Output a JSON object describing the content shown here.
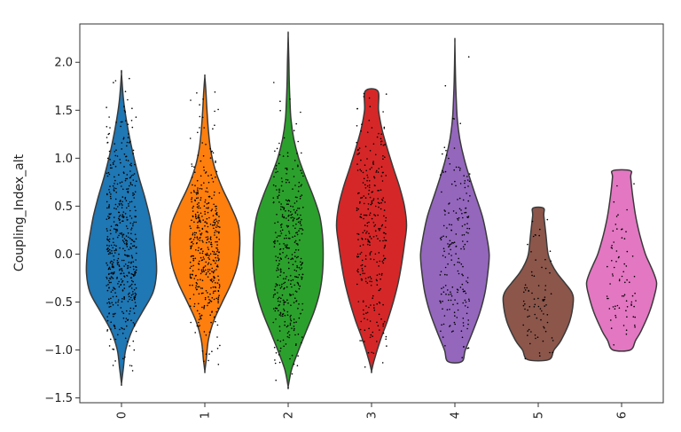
{
  "chart_data": {
    "type": "violin",
    "ylabel": "Coupling_Index_alt",
    "xlabel": "",
    "ylim": [
      -1.55,
      2.4
    ],
    "yticks": [
      -1.5,
      -1.0,
      -0.5,
      0.0,
      0.5,
      1.0,
      1.5,
      2.0
    ],
    "ytick_labels": [
      "−1.5",
      "−1.0",
      "−0.5",
      "0.0",
      "0.5",
      "1.0",
      "1.5",
      "2.0"
    ],
    "categories": [
      "0",
      "1",
      "2",
      "3",
      "4",
      "5",
      "6"
    ],
    "colors": [
      "#1f77b4",
      "#ff7f0e",
      "#2ca02c",
      "#d62728",
      "#9467bd",
      "#8c564b",
      "#e377c2"
    ],
    "grid": false,
    "violins": [
      {
        "category": "0",
        "min": -1.35,
        "max": 1.88,
        "n_points": 520,
        "profile": [
          [
            -1.35,
            0.0
          ],
          [
            -1.2,
            0.05
          ],
          [
            -1.0,
            0.12
          ],
          [
            -0.8,
            0.3
          ],
          [
            -0.6,
            0.6
          ],
          [
            -0.4,
            0.9
          ],
          [
            -0.2,
            1.0
          ],
          [
            0.0,
            0.98
          ],
          [
            0.2,
            0.9
          ],
          [
            0.4,
            0.8
          ],
          [
            0.6,
            0.66
          ],
          [
            0.8,
            0.5
          ],
          [
            1.0,
            0.36
          ],
          [
            1.2,
            0.24
          ],
          [
            1.4,
            0.14
          ],
          [
            1.6,
            0.06
          ],
          [
            1.88,
            0.0
          ]
        ]
      },
      {
        "category": "1",
        "min": -1.22,
        "max": 1.85,
        "n_points": 440,
        "profile": [
          [
            -1.22,
            0.0
          ],
          [
            -1.1,
            0.04
          ],
          [
            -0.9,
            0.1
          ],
          [
            -0.7,
            0.25
          ],
          [
            -0.5,
            0.5
          ],
          [
            -0.3,
            0.76
          ],
          [
            -0.1,
            0.94
          ],
          [
            0.1,
            1.0
          ],
          [
            0.3,
            0.96
          ],
          [
            0.5,
            0.74
          ],
          [
            0.7,
            0.48
          ],
          [
            0.9,
            0.28
          ],
          [
            1.1,
            0.16
          ],
          [
            1.3,
            0.1
          ],
          [
            1.5,
            0.06
          ],
          [
            1.7,
            0.03
          ],
          [
            1.85,
            0.0
          ]
        ]
      },
      {
        "category": "2",
        "min": -1.38,
        "max": 2.28,
        "n_points": 380,
        "profile": [
          [
            -1.38,
            0.0
          ],
          [
            -1.2,
            0.1
          ],
          [
            -1.0,
            0.3
          ],
          [
            -0.8,
            0.52
          ],
          [
            -0.6,
            0.74
          ],
          [
            -0.4,
            0.9
          ],
          [
            -0.2,
            0.98
          ],
          [
            0.0,
            1.0
          ],
          [
            0.2,
            0.98
          ],
          [
            0.4,
            0.9
          ],
          [
            0.6,
            0.72
          ],
          [
            0.8,
            0.5
          ],
          [
            1.0,
            0.3
          ],
          [
            1.2,
            0.16
          ],
          [
            1.4,
            0.08
          ],
          [
            1.6,
            0.05
          ],
          [
            1.8,
            0.03
          ],
          [
            2.0,
            0.02
          ],
          [
            2.28,
            0.0
          ]
        ]
      },
      {
        "category": "3",
        "min": -1.22,
        "max": 1.7,
        "n_points": 300,
        "profile": [
          [
            -1.22,
            0.0
          ],
          [
            -1.1,
            0.08
          ],
          [
            -0.9,
            0.25
          ],
          [
            -0.7,
            0.45
          ],
          [
            -0.5,
            0.62
          ],
          [
            -0.3,
            0.76
          ],
          [
            -0.1,
            0.86
          ],
          [
            0.1,
            0.94
          ],
          [
            0.3,
            1.0
          ],
          [
            0.5,
            0.94
          ],
          [
            0.7,
            0.8
          ],
          [
            0.9,
            0.62
          ],
          [
            1.1,
            0.45
          ],
          [
            1.3,
            0.3
          ],
          [
            1.5,
            0.2
          ],
          [
            1.7,
            0.18
          ]
        ]
      },
      {
        "category": "4",
        "min": -1.12,
        "max": 2.2,
        "n_points": 200,
        "profile": [
          [
            -1.12,
            0.2
          ],
          [
            -1.0,
            0.3
          ],
          [
            -0.8,
            0.52
          ],
          [
            -0.6,
            0.72
          ],
          [
            -0.4,
            0.86
          ],
          [
            -0.2,
            0.94
          ],
          [
            0.0,
            0.98
          ],
          [
            0.2,
            0.9
          ],
          [
            0.4,
            0.78
          ],
          [
            0.6,
            0.6
          ],
          [
            0.8,
            0.42
          ],
          [
            1.0,
            0.26
          ],
          [
            1.2,
            0.14
          ],
          [
            1.4,
            0.07
          ],
          [
            1.6,
            0.04
          ],
          [
            1.8,
            0.02
          ],
          [
            2.2,
            0.0
          ]
        ]
      },
      {
        "category": "5",
        "min": -1.1,
        "max": 0.48,
        "n_points": 80,
        "profile": [
          [
            -1.1,
            0.3
          ],
          [
            -1.0,
            0.45
          ],
          [
            -0.9,
            0.65
          ],
          [
            -0.7,
            0.9
          ],
          [
            -0.5,
            1.0
          ],
          [
            -0.4,
            0.96
          ],
          [
            -0.3,
            0.76
          ],
          [
            -0.2,
            0.54
          ],
          [
            -0.1,
            0.38
          ],
          [
            0.0,
            0.28
          ],
          [
            0.2,
            0.22
          ],
          [
            0.4,
            0.16
          ],
          [
            0.48,
            0.15
          ]
        ]
      },
      {
        "category": "6",
        "min": -1.0,
        "max": 0.87,
        "n_points": 75,
        "profile": [
          [
            -1.0,
            0.25
          ],
          [
            -0.9,
            0.4
          ],
          [
            -0.8,
            0.56
          ],
          [
            -0.6,
            0.8
          ],
          [
            -0.4,
            0.96
          ],
          [
            -0.3,
            1.0
          ],
          [
            -0.2,
            0.92
          ],
          [
            -0.1,
            0.8
          ],
          [
            0.0,
            0.68
          ],
          [
            0.2,
            0.52
          ],
          [
            0.4,
            0.4
          ],
          [
            0.6,
            0.32
          ],
          [
            0.8,
            0.26
          ],
          [
            0.87,
            0.25
          ]
        ]
      }
    ]
  }
}
